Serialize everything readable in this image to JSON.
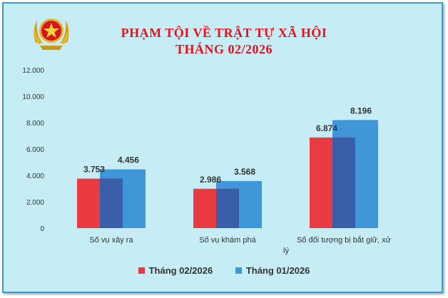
{
  "title_line1": "PHẠM TỘI VỀ TRẬT TỰ XÃ HỘI",
  "title_line2": "THÁNG 02/2026",
  "chart_data": {
    "type": "bar",
    "categories": [
      "Số vụ xảy ra",
      "Số vụ khám phá",
      "Số đối tượng bị bắt giữ, xử lý"
    ],
    "series": [
      {
        "name": "Tháng 02/2026",
        "values": [
          3753,
          2986,
          6874
        ],
        "labels": [
          "3.753",
          "2.986",
          "6.874"
        ],
        "color": "#ea3a42"
      },
      {
        "name": "Tháng 01/2026",
        "values": [
          4456,
          3568,
          8196
        ],
        "labels": [
          "4.456",
          "3.568",
          "8.196"
        ],
        "color": "#3f97d9"
      }
    ],
    "yticks": [
      0,
      2000,
      4000,
      6000,
      8000,
      10000,
      12000
    ],
    "ytick_labels": [
      "0",
      "2.000",
      "4.000",
      "6.000",
      "8.000",
      "10.000",
      "12.000"
    ],
    "ylim": [
      0,
      12000
    ],
    "grid": false,
    "legend_position": "bottom"
  },
  "colors": {
    "background": "#c6edf6",
    "border": "#3a9bd5",
    "title": "#e8101a",
    "overlap": "#3b5ea8"
  }
}
